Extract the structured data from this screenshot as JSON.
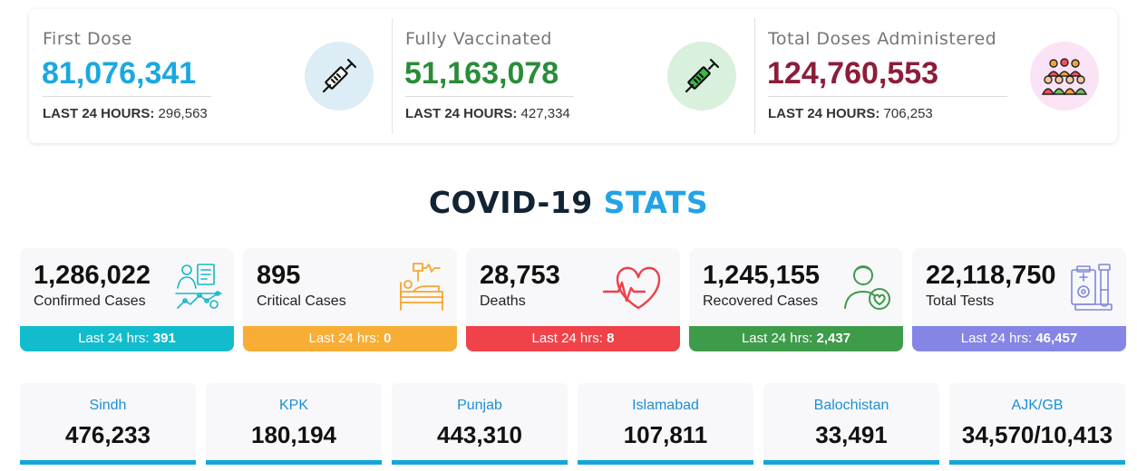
{
  "vaccination": [
    {
      "label": "First Dose",
      "value": "81,076,341",
      "sub_label": "LAST 24 HOURS:",
      "sub_value": "296,563",
      "color": "#1aa8e0",
      "icon": "syringe-icon",
      "icon_bg": "#dcedf5"
    },
    {
      "label": "Fully Vaccinated",
      "value": "51,163,078",
      "sub_label": "LAST 24 HOURS:",
      "sub_value": "427,334",
      "color": "#2a8c3a",
      "icon": "syringe-icon",
      "icon_bg": "#d9f0dc"
    },
    {
      "label": "Total Doses Administered",
      "value": "124,760,553",
      "sub_label": "LAST 24 HOURS:",
      "sub_value": "706,253",
      "color": "#8c1d3a",
      "icon": "crowd-icon",
      "icon_bg": "#fae3f4"
    }
  ],
  "stats_title": {
    "part1": "COVID-19",
    "part2": "STATS"
  },
  "stats": [
    {
      "value": "1,286,022",
      "label": "Confirmed Cases",
      "foot_label": "Last 24 hrs:",
      "foot_value": "391",
      "color": "#12bccd",
      "icon": "confirmed-cases-icon"
    },
    {
      "value": "895",
      "label": "Critical Cases",
      "foot_label": "Last 24 hrs:",
      "foot_value": "0",
      "color": "#f8ad35",
      "icon": "hospital-bed-icon"
    },
    {
      "value": "28,753",
      "label": "Deaths",
      "foot_label": "Last 24 hrs:",
      "foot_value": "8",
      "color": "#f04249",
      "icon": "heartbeat-icon"
    },
    {
      "value": "1,245,155",
      "label": "Recovered Cases",
      "foot_label": "Last 24 hrs:",
      "foot_value": "2,437",
      "color": "#3e9b4a",
      "icon": "recovered-person-icon"
    },
    {
      "value": "22,118,750",
      "label": "Total Tests",
      "foot_label": "Last 24 hrs:",
      "foot_value": "46,457",
      "color": "#8585e6",
      "icon": "lab-test-icon"
    }
  ],
  "provinces": [
    {
      "name": "Sindh",
      "value": "476,233"
    },
    {
      "name": "KPK",
      "value": "180,194"
    },
    {
      "name": "Punjab",
      "value": "443,310"
    },
    {
      "name": "Islamabad",
      "value": "107,811"
    },
    {
      "name": "Balochistan",
      "value": "33,491"
    },
    {
      "name": "AJK/GB",
      "value": "34,570/10,413"
    }
  ]
}
